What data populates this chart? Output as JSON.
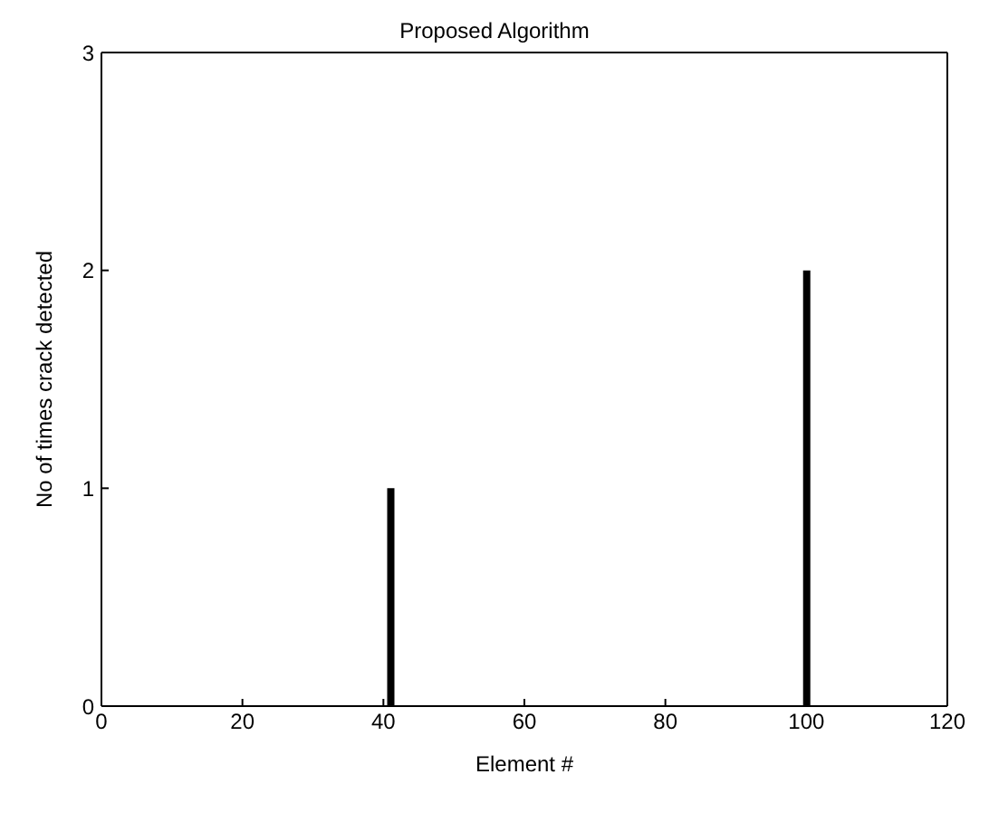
{
  "chart_data": {
    "type": "bar",
    "title": "Proposed Algorithm",
    "xlabel": "Element #",
    "ylabel": "No of times crack detected",
    "x": [
      41,
      100
    ],
    "values": [
      1,
      2
    ],
    "color": "#000000",
    "xlim": [
      0,
      120
    ],
    "xticks": [
      0,
      20,
      40,
      60,
      80,
      100,
      120
    ],
    "ylim": [
      0,
      3
    ],
    "yticks": [
      0,
      1,
      2,
      3
    ],
    "grid": false,
    "legend": false
  }
}
